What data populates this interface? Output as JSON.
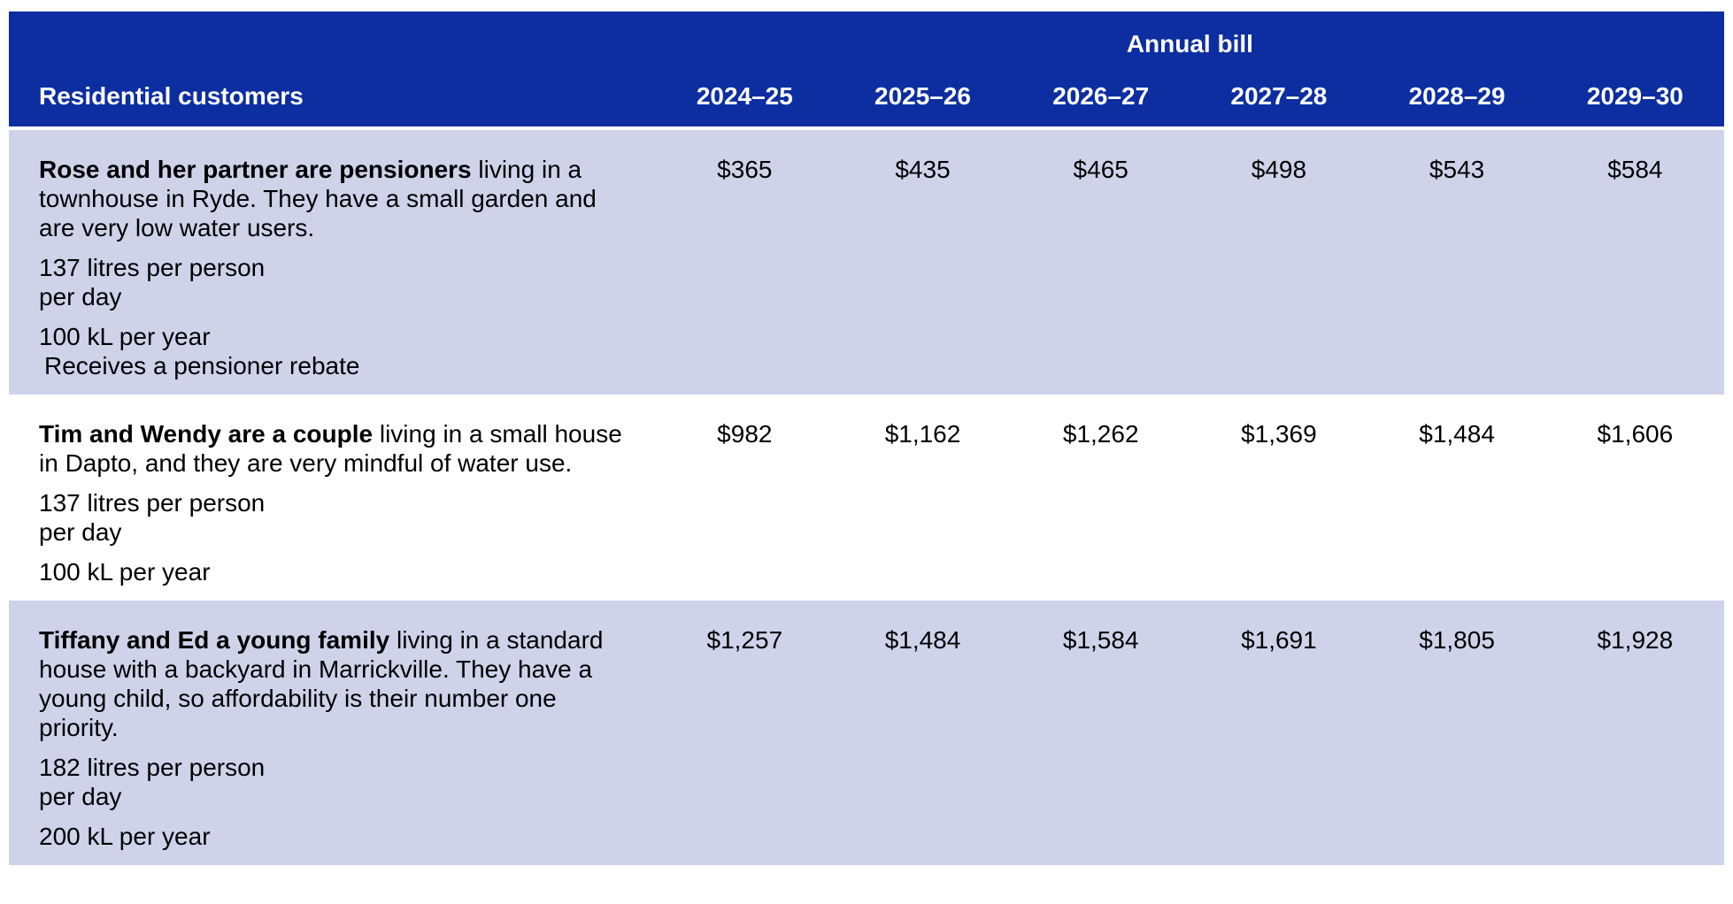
{
  "table": {
    "annual_bill_label": "Annual bill",
    "customers_header": "Residential customers",
    "years": [
      "2024–25",
      "2025–26",
      "2026–27",
      "2027–28",
      "2028–29",
      "2029–30"
    ],
    "rows": [
      {
        "bold": "Rose and her partner are pensioners",
        "desc": " living in a townhouse in Ryde. They have a small garden and are very low water users.",
        "usage_line1": "137 litres per person",
        "usage_line2": "per day",
        "volume": "100 kL per year",
        "note": "Receives a pensioner rebate",
        "values": [
          "$365",
          "$435",
          "$465",
          "$498",
          "$543",
          "$584"
        ]
      },
      {
        "bold": "Tim and Wendy are a couple",
        "desc": " living in a small house in Dapto, and they are very mindful of water use.",
        "usage_line1": "137 litres per person",
        "usage_line2": "per day",
        "volume": "100 kL per year",
        "note": "",
        "values": [
          "$982",
          "$1,162",
          "$1,262",
          "$1,369",
          "$1,484",
          "$1,606"
        ]
      },
      {
        "bold": "Tiffany and Ed a young family",
        "desc": " living in a standard house with a backyard in Marrickville. They have a young child, so affordability is their number one priority.",
        "usage_line1": "182 litres per person",
        "usage_line2": "per day",
        "volume": "200 kL per year",
        "note": "",
        "values": [
          "$1,257",
          "$1,484",
          "$1,584",
          "$1,691",
          "$1,805",
          "$1,928"
        ]
      }
    ],
    "colors": {
      "header_bg": "#0d2ea0",
      "row_alt_bg": "#ced3ea",
      "header_text": "#ffffff",
      "body_text": "#000000"
    }
  }
}
